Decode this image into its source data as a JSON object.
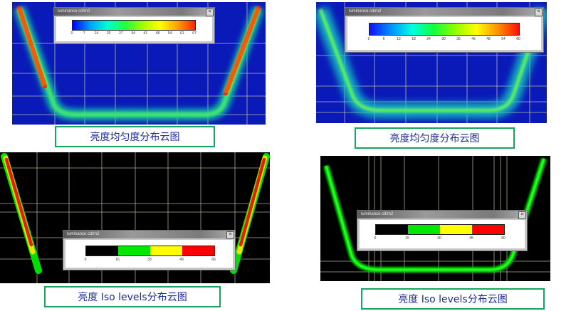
{
  "panels": [
    {
      "id": "uniformity-1",
      "caption": "亮度均匀度分布云图",
      "legend_title": "luminance cd/m2",
      "legend_ticks": [
        "0",
        "7",
        "14",
        "20",
        "27",
        "34",
        "41",
        "48",
        "54",
        "61",
        "67"
      ]
    },
    {
      "id": "uniformity-2",
      "caption": "亮度均匀度分布云图",
      "legend_title": "luminance cd/m2",
      "legend_ticks": [
        "0",
        "6",
        "12",
        "18",
        "24",
        "30",
        "36",
        "42",
        "48",
        "54",
        "60"
      ]
    },
    {
      "id": "iso-1",
      "caption": "亮度 Iso levels分布云图",
      "legend_title": "luminance cd/m2",
      "legend_ticks": [
        "0",
        "16",
        "33",
        "49",
        "66"
      ]
    },
    {
      "id": "iso-2",
      "caption": "亮度 Iso levels分布云图",
      "legend_title": "luminance cd/m2",
      "legend_ticks": [
        "0",
        "15",
        "30",
        "45",
        "60"
      ]
    }
  ],
  "colors": {
    "caption_border": "#19a35f",
    "caption_text": "#1c2b9a",
    "plot_blue": "#0a1ab8",
    "plot_black": "#000000",
    "grid_line": "#d9d3a8"
  },
  "icons": {
    "window_close": "close-icon"
  },
  "close_glyph": "×"
}
